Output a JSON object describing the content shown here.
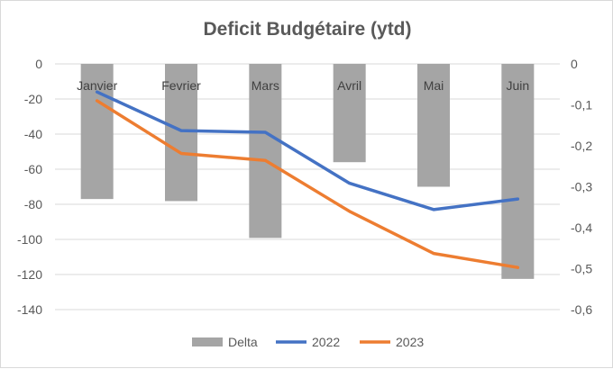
{
  "chart_data": {
    "type": "bar",
    "title": "Deficit Budgétaire (ytd)",
    "categories": [
      "Janvier",
      "Fevrier",
      "Mars",
      "Avril",
      "Mai",
      "Juin"
    ],
    "y_left": {
      "min": -140,
      "max": 0,
      "step": 20,
      "ticks": [
        "0",
        "-20",
        "-40",
        "-60",
        "-80",
        "-100",
        "-120",
        "-140"
      ]
    },
    "y_right": {
      "min": -0.6,
      "max": 0,
      "step": 0.1,
      "ticks": [
        "0",
        "-0,1",
        "-0,2",
        "-0,3",
        "-0,4",
        "-0,5",
        "-0,6"
      ]
    },
    "series": [
      {
        "name": "Delta",
        "kind": "bar",
        "axis": "right",
        "color": "#a5a5a5",
        "values": [
          -0.33,
          -0.335,
          -0.425,
          -0.24,
          -0.3,
          -0.525
        ]
      },
      {
        "name": "2022",
        "kind": "line",
        "axis": "left",
        "color": "#4472c4",
        "values": [
          -16,
          -38,
          -39,
          -68,
          -83,
          -77
        ]
      },
      {
        "name": "2023",
        "kind": "line",
        "axis": "left",
        "color": "#ed7d31",
        "values": [
          -21,
          -51,
          -55,
          -84,
          -108,
          -116
        ]
      }
    ],
    "grid": true,
    "legend": "bottom"
  }
}
